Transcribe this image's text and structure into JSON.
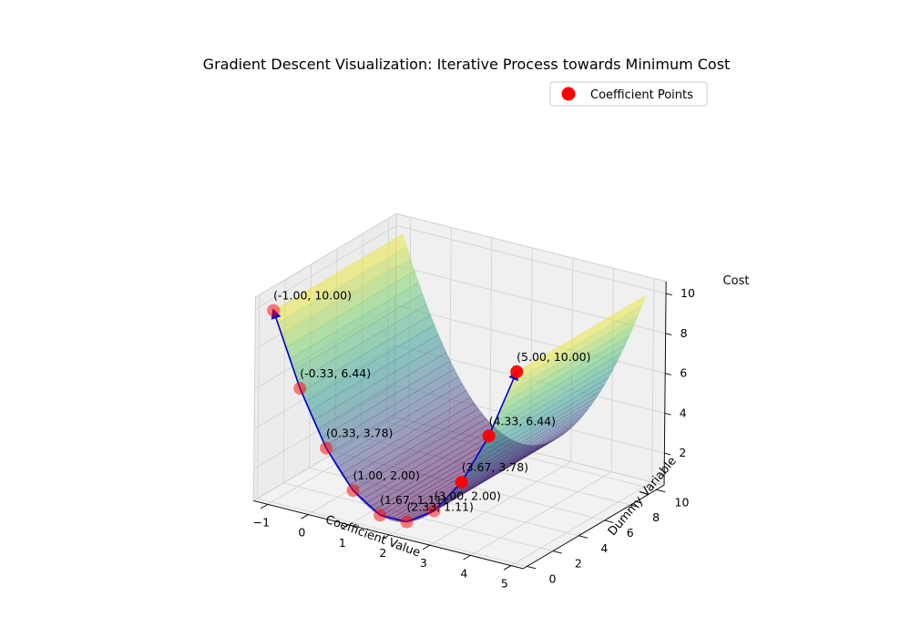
{
  "chart_data": {
    "type": "scatter",
    "projection": "3d",
    "title": "Gradient Descent Visualization: Iterative Process towards Minimum Cost",
    "xlabel": "Coefficient Value",
    "ylabel": "Dummy Variable",
    "zlabel": "Cost",
    "xlim": [
      -1,
      5
    ],
    "ylim": [
      0,
      10
    ],
    "zlim": [
      1,
      10
    ],
    "x_ticks": [
      "−1",
      "0",
      "1",
      "2",
      "3",
      "4",
      "5"
    ],
    "y_ticks": [
      "0",
      "2",
      "4",
      "6",
      "8",
      "10"
    ],
    "z_ticks": [
      "2",
      "4",
      "6",
      "8",
      "10"
    ],
    "surface": "cost = (coefficient - 2)^2 + 1",
    "colormap": "viridis",
    "grid": true,
    "legend": {
      "position": "top-right",
      "entries": [
        "Coefficient Points"
      ]
    },
    "series": [
      {
        "name": "Coefficient Points",
        "color": "#ff0000",
        "points": [
          {
            "x": -1.0,
            "y": 0,
            "z": 10.0,
            "label": "(-1.00, 10.00)"
          },
          {
            "x": -0.33,
            "y": 0,
            "z": 6.44,
            "label": "(-0.33, 6.44)"
          },
          {
            "x": 0.33,
            "y": 0,
            "z": 3.78,
            "label": "(0.33, 3.78)"
          },
          {
            "x": 1.0,
            "y": 0,
            "z": 2.0,
            "label": "(1.00, 2.00)"
          },
          {
            "x": 1.67,
            "y": 0,
            "z": 1.11,
            "label": "(1.67, 1.11)"
          },
          {
            "x": 2.33,
            "y": 0,
            "z": 1.11,
            "label": "(2.33, 1.11)"
          },
          {
            "x": 3.0,
            "y": 0,
            "z": 2.0,
            "label": "(3.00, 2.00)"
          },
          {
            "x": 3.67,
            "y": 0,
            "z": 3.78,
            "label": "(3.67, 3.78)"
          },
          {
            "x": 4.33,
            "y": 0,
            "z": 6.44,
            "label": "(4.33, 6.44)"
          },
          {
            "x": 5.0,
            "y": 0,
            "z": 10.0,
            "label": "(5.00, 10.00)"
          }
        ]
      }
    ],
    "path_color": "#0000cc"
  }
}
